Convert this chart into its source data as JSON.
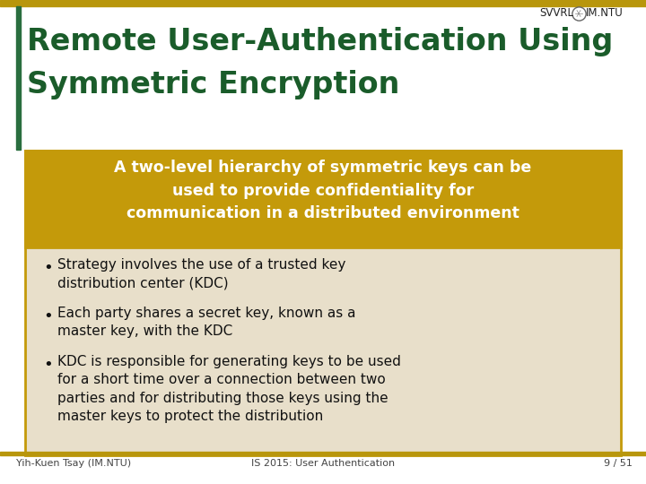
{
  "bg_color": "#ffffff",
  "bar_color": "#b8960c",
  "title_line1": "Remote User-Authentication Using",
  "title_line2": "Symmetric Encryption",
  "title_color": "#1a5c2a",
  "left_bar_color": "#2a6e3f",
  "header_bg": "#c49a0a",
  "header_text_color": "#ffffff",
  "header_text": "A two-level hierarchy of symmetric keys can be\nused to provide confidentiality for\ncommunication in a distributed environment",
  "content_bg": "#e8dfca",
  "content_border": "#c49a0a",
  "bullet_color": "#111111",
  "bullets": [
    "Strategy involves the use of a trusted key\ndistribution center (KDC)",
    "Each party shares a secret key, known as a\nmaster key, with the KDC",
    "KDC is responsible for generating keys to be used\nfor a short time over a connection between two\nparties and for distributing those keys using the\nmaster keys to protect the distribution"
  ],
  "footer_left": "Yih-Kuen Tsay (IM.NTU)",
  "footer_center": "IS 2015: User Authentication",
  "footer_right": "9 / 51",
  "footer_color": "#444444",
  "header_logo_text": "SVVRL",
  "header_imntu_text": "IM.NTU"
}
